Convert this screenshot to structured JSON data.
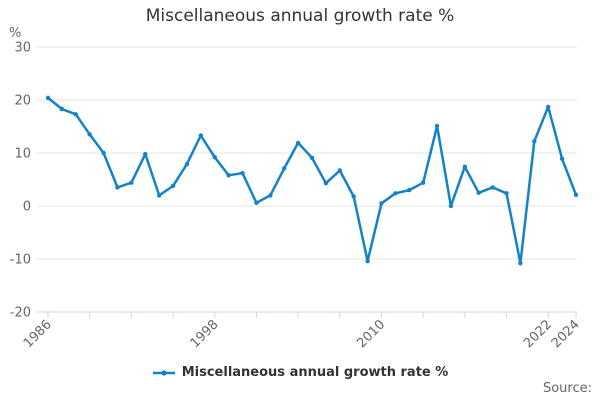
{
  "page": {
    "title": "Miscellaneous annual growth rate %"
  },
  "chart_data": {
    "type": "line",
    "title": "Miscellaneous annual growth rate %",
    "y_unit_label": "%",
    "xlabel": "",
    "ylabel": "%",
    "xlim": [
      1986,
      2024
    ],
    "ylim": [
      -20,
      30
    ],
    "grid": "horizontal",
    "legend_position": "bottom",
    "x": [
      1986,
      1987,
      1988,
      1989,
      1990,
      1991,
      1992,
      1993,
      1994,
      1995,
      1996,
      1997,
      1998,
      1999,
      2000,
      2001,
      2002,
      2003,
      2004,
      2005,
      2006,
      2007,
      2008,
      2009,
      2010,
      2011,
      2012,
      2013,
      2014,
      2015,
      2016,
      2017,
      2018,
      2019,
      2020,
      2021,
      2022,
      2023,
      2024
    ],
    "series": [
      {
        "name": "Miscellaneous annual growth rate %",
        "color": "#1482c8",
        "values": [
          20.4,
          18.3,
          17.3,
          13.5,
          10.0,
          3.5,
          4.4,
          9.8,
          2.0,
          3.8,
          7.9,
          13.3,
          9.2,
          5.8,
          6.2,
          0.6,
          2.0,
          7.1,
          11.9,
          9.1,
          4.3,
          6.7,
          1.8,
          -10.4,
          0.5,
          2.4,
          3.0,
          4.4,
          15.1,
          0.0,
          7.4,
          2.5,
          3.5,
          2.4,
          -10.8,
          12.2,
          18.7,
          8.9,
          2.1
        ]
      }
    ],
    "x_ticks": [
      1986,
      1989,
      1992,
      1995,
      1998,
      2001,
      2004,
      2007,
      2010,
      2013,
      2016,
      2019,
      2022,
      2024
    ],
    "x_tick_labels": [
      1986,
      1998,
      2010,
      2022,
      2024
    ],
    "y_ticks": [
      30,
      20,
      10,
      0,
      -10,
      -20
    ]
  },
  "footer": {
    "source_label": "Source:"
  },
  "colors": {
    "line": "#1482c8",
    "grid": "#e6e6e6",
    "axis": "#ccd6eb",
    "tick_text": "#666666",
    "title_text": "#333333"
  }
}
